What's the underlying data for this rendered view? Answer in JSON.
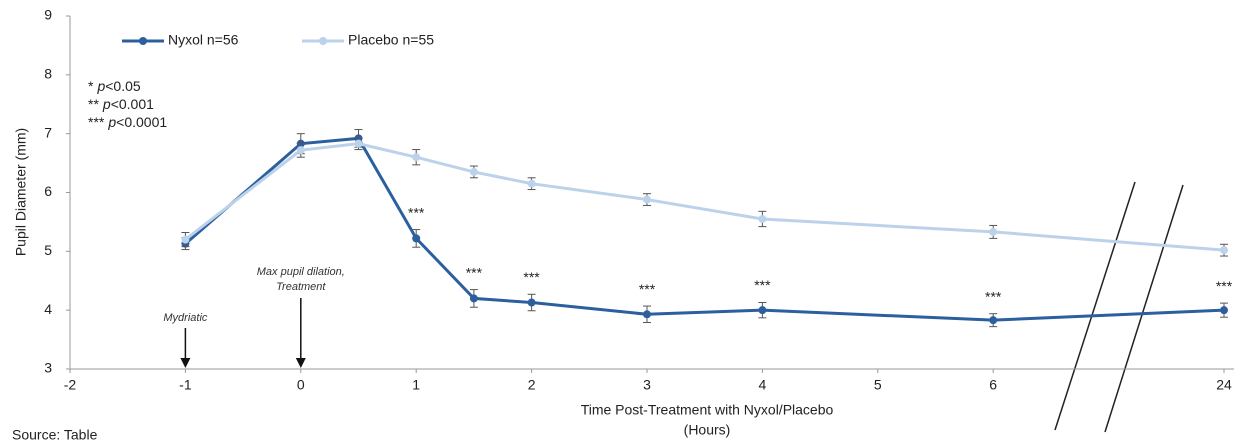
{
  "chart_data": {
    "type": "line",
    "y_label": "Pupil Diameter (mm)",
    "x_label": [
      "Time Post-Treatment with Nyxol/Placebo",
      "(Hours)"
    ],
    "x": [
      -1,
      0,
      0.5,
      1,
      1.5,
      2,
      3,
      4,
      6,
      24
    ],
    "series": [
      {
        "name": "Nyxol n=56",
        "color": "#2b5f9e",
        "values": [
          5.13,
          6.83,
          6.92,
          5.22,
          4.2,
          4.13,
          3.93,
          4.0,
          3.83,
          4.0
        ],
        "errors": [
          0.1,
          0.17,
          0.15,
          0.15,
          0.15,
          0.14,
          0.14,
          0.13,
          0.11,
          0.12
        ]
      },
      {
        "name": "Placebo n=55",
        "color": "#bcd2ea",
        "values": [
          5.2,
          6.72,
          6.83,
          6.6,
          6.35,
          6.15,
          5.88,
          5.55,
          5.33,
          5.02
        ],
        "errors": [
          0.12,
          0.12,
          0.1,
          0.13,
          0.1,
          0.1,
          0.1,
          0.13,
          0.11,
          0.1
        ]
      }
    ],
    "xlim": [
      -2,
      24
    ],
    "xticks": [
      -2,
      -1,
      0,
      1,
      2,
      3,
      4,
      5,
      6,
      24
    ],
    "ylim": [
      3,
      9
    ],
    "yticks": [
      3,
      4,
      5,
      6,
      7,
      8,
      9
    ],
    "grid": false,
    "significance_legend": [
      {
        "stars": "*",
        "italic": "p",
        "rest": "<0.05"
      },
      {
        "stars": "**",
        "italic": "p",
        "rest": "<0.001"
      },
      {
        "stars": "***",
        "italic": "p",
        "rest": "<0.0001"
      }
    ],
    "significance": [
      {
        "x": 1,
        "text": "***"
      },
      {
        "x": 1.5,
        "text": "***"
      },
      {
        "x": 2,
        "text": "***"
      },
      {
        "x": 3,
        "text": "***"
      },
      {
        "x": 4,
        "text": "***"
      },
      {
        "x": 6,
        "text": "***"
      },
      {
        "x": 24,
        "text": "***"
      }
    ],
    "arrows": [
      {
        "x": -1,
        "lines": [
          "Mydriatic"
        ]
      },
      {
        "x": 0,
        "lines": [
          "Max pupil dilation,",
          "Treatment"
        ]
      }
    ],
    "source": "Source: Table"
  }
}
